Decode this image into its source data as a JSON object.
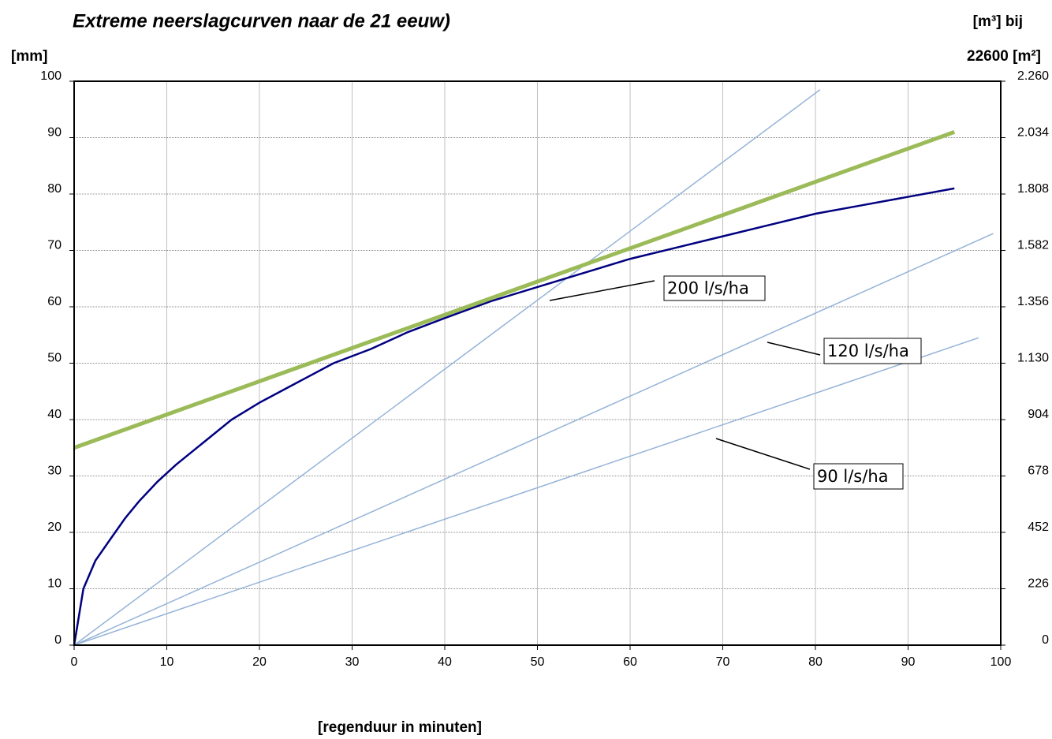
{
  "chart_data": {
    "type": "line",
    "title": "Extreme neerslagcurven naar de 21 eeuw)",
    "ylabel": "[mm]",
    "y2label": [
      "[m³] bij",
      "22600 [m²]"
    ],
    "xlabel": "[regenduur in minuten]",
    "xlim": [
      0,
      100
    ],
    "xticks": [
      0,
      10,
      20,
      30,
      40,
      50,
      60,
      70,
      80,
      90,
      100
    ],
    "ylim": [
      0,
      100
    ],
    "yticks": [
      0,
      10,
      20,
      30,
      40,
      50,
      60,
      70,
      80,
      90,
      100
    ],
    "y2lim": [
      0,
      2260
    ],
    "y2ticks": [
      0,
      226,
      452,
      678,
      904,
      {
        "value": 1130,
        "label": "1.130"
      },
      {
        "value": 1356,
        "label": "1.356"
      },
      {
        "value": 1582,
        "label": "1.582"
      },
      {
        "value": 1808,
        "label": "1.808"
      },
      {
        "value": 2034,
        "label": "2.034"
      },
      {
        "value": 2260,
        "label": "2.260"
      }
    ],
    "grid": true,
    "series": [
      {
        "color": "#95b3d7",
        "width": 1.5,
        "x": [
          0,
          80.5
        ],
        "values": [
          0,
          98.5
        ]
      },
      {
        "color": "#95b3d7",
        "width": 1.5,
        "x": [
          0,
          99.2
        ],
        "values": [
          0,
          73
        ]
      },
      {
        "color": "#95b3d7",
        "width": 1.5,
        "x": [
          0,
          97.6
        ],
        "values": [
          0,
          54.5
        ]
      },
      {
        "color": "#000080",
        "width": 2.5,
        "x": [
          0,
          1,
          2.3,
          4,
          5.5,
          7,
          9,
          11,
          14,
          17,
          20,
          24,
          28,
          32,
          36,
          40,
          45,
          50,
          55,
          60,
          65,
          70,
          75,
          80,
          85,
          90,
          95
        ],
        "values": [
          0,
          10,
          15,
          19,
          22.5,
          25.5,
          29,
          32,
          36,
          40,
          43,
          46.5,
          50,
          52.5,
          55.5,
          58,
          61,
          63.5,
          66,
          68.5,
          70.5,
          72.5,
          74.5,
          76.5,
          78,
          79.5,
          81
        ]
      },
      {
        "color": "#9bbb59",
        "width": 5,
        "x": [
          0,
          95
        ],
        "values": [
          35,
          91
        ]
      }
    ],
    "annotations": [
      "200 l/s/ha",
      "120 l/s/ha",
      "90 l/s/ha"
    ]
  }
}
